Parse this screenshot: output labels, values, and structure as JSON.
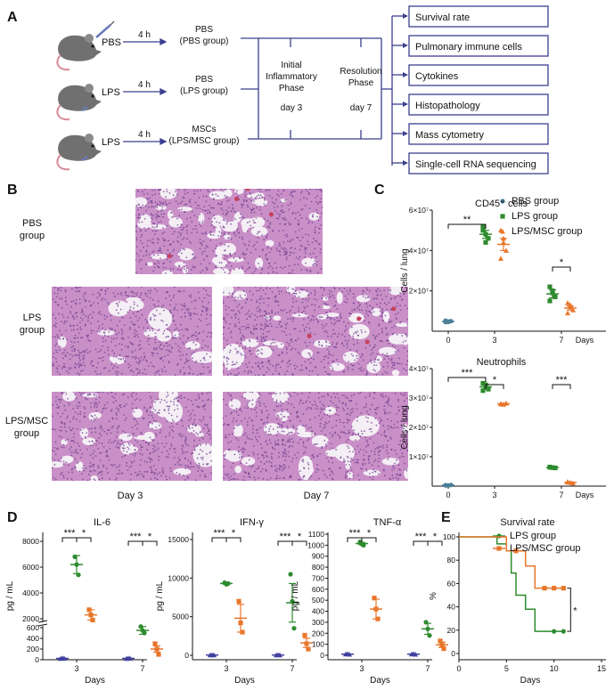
{
  "panel_a": {
    "letter": "A",
    "time_label": "4 h",
    "injections": [
      {
        "agent": "PBS",
        "result": "PBS",
        "group": "(PBS group)"
      },
      {
        "agent": "LPS",
        "result": "PBS",
        "group": "(LPS group)"
      },
      {
        "agent": "LPS",
        "result": "MSCs",
        "group": "(LPS/MSC group)"
      }
    ],
    "phases": [
      {
        "line1": "Initial",
        "line2": "Inflammatory",
        "line3": "Phase",
        "day": "day 3"
      },
      {
        "line1": "Resolution",
        "line2": "Phase",
        "line3": "",
        "day": "day 7"
      }
    ],
    "outcomes": [
      "Survival rate",
      "Pulmonary immune cells",
      "Cytokines",
      "Histopathology",
      "Mass cytometry",
      "Single-cell RNA sequencing"
    ]
  },
  "panel_b": {
    "letter": "B",
    "rows": [
      {
        "line1": "PBS",
        "line2": "group"
      },
      {
        "line1": "LPS",
        "line2": "group"
      },
      {
        "line1": "LPS/MSC",
        "line2": "group"
      }
    ],
    "day_labels": [
      "Day 3",
      "Day 7"
    ],
    "colors": {
      "tissue": "#c98fc7",
      "nuclei": "#6e3f8e",
      "alveoli": "#f4eef5",
      "blood": "#c8405a"
    }
  },
  "legend": {
    "groups": [
      {
        "name": "PBS group",
        "color": "#4a7f96"
      },
      {
        "name": "LPS group",
        "color": "#2e8b2e"
      },
      {
        "name": "LPS/MSC group",
        "color": "#e8762b"
      }
    ],
    "d_group_colors": [
      "#4040a0",
      "#2e8b2e",
      "#e8762b"
    ],
    "e_group_colors": [
      "#2e8b2e",
      "#e8762b"
    ]
  },
  "chart_data": [
    {
      "panel": "C",
      "type": "scatter",
      "title": "CD45⁺ cells",
      "ylabel": "Cells / lung",
      "xlabel": "Days",
      "x_ticks": [
        "0",
        "3",
        "7"
      ],
      "y_ticks": [
        "2×10⁷",
        "4×10⁷",
        "6×10⁷"
      ],
      "ylim": [
        0,
        60000000
      ],
      "y_tick_values": [
        20000000,
        40000000,
        60000000
      ],
      "series": [
        {
          "name": "PBS group",
          "x": 0,
          "values": [
            4500000,
            4800000,
            5000000,
            5200000,
            4600000
          ],
          "mean": 4800000,
          "sem": 200000
        },
        {
          "name": "LPS group",
          "x": 3,
          "values": [
            52000000,
            48000000,
            46000000,
            50000000,
            44000000
          ],
          "mean": 48000000,
          "sem": 2000000
        },
        {
          "name": "LPS/MSC group",
          "x": 3,
          "values": [
            50000000,
            44000000,
            40000000,
            36000000,
            46000000
          ],
          "mean": 43000000,
          "sem": 3000000
        },
        {
          "name": "LPS group",
          "x": 7,
          "values": [
            22000000,
            19000000,
            17000000,
            15000000,
            20000000
          ],
          "mean": 18500000,
          "sem": 2000000
        },
        {
          "name": "LPS/MSC group",
          "x": 7,
          "values": [
            14000000,
            12000000,
            10500000,
            9000000,
            13000000
          ],
          "mean": 11500000,
          "sem": 1000000
        }
      ],
      "significance": [
        {
          "label": "**",
          "x1": 0,
          "x2": 3
        },
        {
          "label": "*",
          "x1": 7,
          "x2": 7
        }
      ]
    },
    {
      "panel": "C",
      "type": "scatter",
      "title": "Neutrophils",
      "ylabel": "Cells / lung",
      "xlabel": "Days",
      "x_ticks": [
        "0",
        "3",
        "7"
      ],
      "y_ticks": [
        "1×10⁷",
        "2×10⁷",
        "3×10⁷",
        "4×10⁷"
      ],
      "ylim": [
        0,
        40000000
      ],
      "y_tick_values": [
        10000000,
        20000000,
        30000000,
        40000000
      ],
      "series": [
        {
          "name": "PBS group",
          "x": 0,
          "values": [
            300000,
            200000,
            400000,
            250000
          ],
          "mean": 300000,
          "sem": 50000
        },
        {
          "name": "LPS group",
          "x": 3,
          "values": [
            35000000,
            34000000,
            33000000,
            32500000,
            34500000
          ],
          "mean": 33800000,
          "sem": 800000
        },
        {
          "name": "LPS/MSC group",
          "x": 3,
          "values": [
            28000000,
            27800000,
            28200000,
            27900000
          ],
          "mean": 28000000,
          "sem": 200000
        },
        {
          "name": "LPS group",
          "x": 7,
          "values": [
            6500000,
            6300000,
            6200000,
            6400000
          ],
          "mean": 6300000,
          "sem": 100000
        },
        {
          "name": "LPS/MSC group",
          "x": 7,
          "values": [
            1500000,
            1200000,
            1000000,
            1300000
          ],
          "mean": 1250000,
          "sem": 150000
        }
      ],
      "significance": [
        {
          "label": "***",
          "x1": 0,
          "x2": 3
        },
        {
          "label": "*",
          "x1": 3,
          "x2": 3
        },
        {
          "label": "***",
          "x1": 0,
          "x2": 7
        }
      ]
    },
    {
      "panel": "D",
      "type": "scatter",
      "title": "IL-6",
      "ylabel": "pg / mL",
      "xlabel": "Days",
      "x_ticks": [
        "3",
        "7"
      ],
      "y_ticks_top": [
        "2000",
        "4000",
        "6000",
        "8000"
      ],
      "y_ticks_bottom": [
        "0",
        "200",
        "400",
        "600"
      ],
      "series": [
        {
          "name": "PBS group",
          "x": 3,
          "values": [
            20,
            30,
            25
          ],
          "mean": 25,
          "sem": 5
        },
        {
          "name": "LPS group",
          "x": 3,
          "values": [
            6800,
            6200,
            5400
          ],
          "mean": 6200,
          "sem": 700
        },
        {
          "name": "LPS/MSC group",
          "x": 3,
          "values": [
            2700,
            2300,
            1900
          ],
          "mean": 2300,
          "sem": 400
        },
        {
          "name": "PBS group",
          "x": 7,
          "values": [
            20,
            30,
            25
          ],
          "mean": 25,
          "sem": 5
        },
        {
          "name": "LPS group",
          "x": 7,
          "values": [
            1400,
            1100,
            500
          ],
          "mean": 1100,
          "sem": 300
        },
        {
          "name": "LPS/MSC group",
          "x": 7,
          "values": [
            300,
            200,
            100
          ],
          "mean": 200,
          "sem": 60
        }
      ],
      "significance": [
        {
          "label": "***",
          "x": 3
        },
        {
          "label": "*",
          "x": 3
        },
        {
          "label": "***",
          "x": 7
        },
        {
          "label": "*",
          "x": 7
        }
      ]
    },
    {
      "panel": "D",
      "type": "scatter",
      "title": "IFN-γ",
      "ylabel": "pg / mL",
      "xlabel": "Days",
      "x_ticks": [
        "3",
        "7"
      ],
      "y_ticks": [
        "0",
        "5000",
        "10000",
        "15000"
      ],
      "ylim": [
        0,
        15000
      ],
      "series": [
        {
          "name": "PBS group",
          "x": 3,
          "values": [
            30,
            40,
            35
          ],
          "mean": 35,
          "sem": 5
        },
        {
          "name": "LPS group",
          "x": 3,
          "values": [
            9400,
            9200,
            9300
          ],
          "mean": 9300,
          "sem": 100
        },
        {
          "name": "LPS/MSC group",
          "x": 3,
          "values": [
            7000,
            4200,
            3000
          ],
          "mean": 4800,
          "sem": 1800
        },
        {
          "name": "PBS group",
          "x": 7,
          "values": [
            30,
            40,
            35
          ],
          "mean": 35,
          "sem": 5
        },
        {
          "name": "LPS group",
          "x": 7,
          "values": [
            10500,
            7000,
            3500
          ],
          "mean": 6800,
          "sem": 2500
        },
        {
          "name": "LPS/MSC group",
          "x": 7,
          "values": [
            2600,
            1500,
            800
          ],
          "mean": 1600,
          "sem": 600
        }
      ],
      "significance": [
        {
          "label": "***",
          "x": 3
        },
        {
          "label": "*",
          "x": 3
        },
        {
          "label": "***",
          "x": 7
        },
        {
          "label": "*",
          "x": 7
        }
      ]
    },
    {
      "panel": "D",
      "type": "scatter",
      "title": "TNF-α",
      "ylabel": "pg / mL",
      "xlabel": "Days",
      "x_ticks": [
        "3",
        "7"
      ],
      "y_ticks": [
        "0",
        "100",
        "200",
        "300",
        "400",
        "500",
        "600",
        "700",
        "800",
        "900",
        "1000",
        "1100"
      ],
      "ylim": [
        0,
        1100
      ],
      "series": [
        {
          "name": "PBS group",
          "x": 3,
          "values": [
            10,
            12,
            8
          ],
          "mean": 10,
          "sem": 2
        },
        {
          "name": "LPS group",
          "x": 3,
          "values": [
            1030,
            1010,
            1000
          ],
          "mean": 1015,
          "sem": 10
        },
        {
          "name": "LPS/MSC group",
          "x": 3,
          "values": [
            520,
            420,
            330
          ],
          "mean": 420,
          "sem": 90
        },
        {
          "name": "PBS group",
          "x": 7,
          "values": [
            10,
            12,
            8
          ],
          "mean": 10,
          "sem": 2
        },
        {
          "name": "LPS group",
          "x": 7,
          "values": [
            300,
            240,
            180
          ],
          "mean": 240,
          "sem": 50
        },
        {
          "name": "LPS/MSC group",
          "x": 7,
          "values": [
            130,
            95,
            60
          ],
          "mean": 95,
          "sem": 25
        }
      ],
      "significance": [
        {
          "label": "***",
          "x": 3
        },
        {
          "label": "*",
          "x": 3
        },
        {
          "label": "***",
          "x": 7
        },
        {
          "label": "*",
          "x": 7
        }
      ]
    },
    {
      "panel": "E",
      "type": "line",
      "title": "Survival rate",
      "ylabel": "%",
      "xlabel": "Days",
      "x_ticks": [
        "0",
        "5",
        "10",
        "15"
      ],
      "y_ticks": [
        "0",
        "20",
        "40",
        "60",
        "80",
        "100"
      ],
      "xlim": [
        0,
        15
      ],
      "ylim": [
        0,
        100
      ],
      "series": [
        {
          "name": "LPS group",
          "steps": [
            [
              0,
              100
            ],
            [
              4,
              100
            ],
            [
              4,
              94
            ],
            [
              5,
              94
            ],
            [
              5,
              88
            ],
            [
              5.5,
              88
            ],
            [
              5.5,
              69
            ],
            [
              6,
              69
            ],
            [
              6,
              50
            ],
            [
              7,
              50
            ],
            [
              7,
              38
            ],
            [
              8,
              38
            ],
            [
              8,
              19
            ],
            [
              11,
              19
            ]
          ],
          "censored": [
            [
              10,
              19
            ],
            [
              11,
              19
            ]
          ]
        },
        {
          "name": "LPS/MSC group",
          "steps": [
            [
              0,
              100
            ],
            [
              5,
              100
            ],
            [
              5,
              88
            ],
            [
              7,
              88
            ],
            [
              7,
              75
            ],
            [
              8,
              75
            ],
            [
              8,
              56
            ],
            [
              11,
              56
            ]
          ],
          "censored": [
            [
              6,
              88
            ],
            [
              9,
              56
            ],
            [
              10,
              56
            ],
            [
              11,
              56
            ]
          ]
        }
      ],
      "significance": [
        {
          "label": "*"
        }
      ]
    }
  ]
}
